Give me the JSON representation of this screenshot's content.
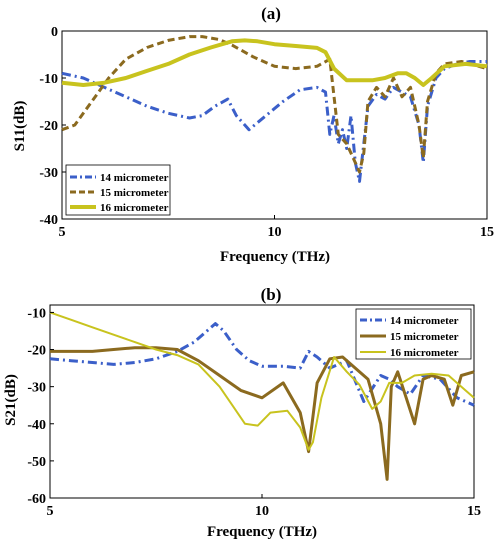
{
  "chart_data": [
    {
      "type": "line",
      "title": "(a)",
      "xlabel": "Frequency (THz)",
      "ylabel": "S11(dB)",
      "xlim": [
        5,
        15
      ],
      "ylim": [
        -40,
        0
      ],
      "xticks": [
        5,
        10,
        15
      ],
      "yticks": [
        -40,
        -30,
        -20,
        -10,
        0
      ],
      "tick_labels_y": [
        "-40",
        "-30",
        "-20",
        "-10",
        "0"
      ],
      "tick_labels_x": [
        "5",
        "10",
        "15"
      ],
      "legend_position": "bottom-left",
      "grid": false,
      "series": [
        {
          "name": "14 micrometer",
          "color": "#3b5fc9",
          "dash": "dashdot",
          "width": 3,
          "x": [
            5,
            5.5,
            6,
            6.5,
            7,
            7.5,
            8,
            8.3,
            8.6,
            8.9,
            9.1,
            9.4,
            9.8,
            10.2,
            10.6,
            11,
            11.2,
            11.3,
            11.4,
            11.5,
            11.6,
            11.7,
            11.8,
            11.9,
            12.0,
            12.1,
            12.2,
            12.4,
            12.6,
            12.8,
            13.0,
            13.2,
            13.4,
            13.5,
            13.6,
            13.8,
            14.0,
            14.3,
            14.6,
            15
          ],
          "y": [
            -9,
            -10,
            -12,
            -14,
            -16,
            -17.5,
            -18.5,
            -18,
            -16,
            -14.5,
            -18,
            -21,
            -18,
            -15,
            -12.5,
            -12,
            -13,
            -22,
            -18,
            -24,
            -21,
            -25,
            -18,
            -28,
            -32,
            -24,
            -16,
            -13.5,
            -14.5,
            -12,
            -13,
            -14,
            -20,
            -28,
            -16,
            -10,
            -8,
            -7,
            -6.5,
            -6.5
          ]
        },
        {
          "name": "15 micrometer",
          "color": "#8b6a1f",
          "dash": "dash",
          "width": 3,
          "x": [
            5,
            5.3,
            5.7,
            6.1,
            6.5,
            7.0,
            7.5,
            8.0,
            8.3,
            8.7,
            9.0,
            9.5,
            10.0,
            10.5,
            11.0,
            11.3,
            11.5,
            11.7,
            11.9,
            12.0,
            12.1,
            12.2,
            12.4,
            12.6,
            12.8,
            13.0,
            13.2,
            13.4,
            13.5,
            13.6,
            13.8,
            14.0,
            14.4,
            15
          ],
          "y": [
            -21,
            -20,
            -15,
            -10,
            -6,
            -3.5,
            -2,
            -1.2,
            -1.2,
            -1.8,
            -3,
            -5.5,
            -7.5,
            -8,
            -7.5,
            -6,
            -22,
            -24,
            -28,
            -30,
            -26,
            -15,
            -12,
            -14,
            -10,
            -14,
            -12,
            -20,
            -27,
            -15,
            -9,
            -7,
            -6.5,
            -8
          ]
        },
        {
          "name": "16 micrometer",
          "color": "#c8c31e",
          "dash": "solid",
          "width": 4,
          "x": [
            5,
            5.5,
            6,
            6.5,
            7,
            7.5,
            8,
            8.5,
            9,
            9.3,
            9.6,
            10,
            10.5,
            11,
            11.2,
            11.4,
            11.7,
            12.0,
            12.3,
            12.6,
            12.9,
            13.1,
            13.3,
            13.5,
            13.7,
            14.0,
            14.5,
            15
          ],
          "y": [
            -11,
            -11.5,
            -11,
            -10,
            -8.5,
            -7,
            -5,
            -3.5,
            -2.2,
            -2,
            -2.2,
            -2.8,
            -3.2,
            -3.6,
            -4.5,
            -8,
            -10.5,
            -10.5,
            -10.5,
            -10,
            -9,
            -9,
            -10,
            -11.5,
            -10,
            -7.5,
            -7,
            -7.5
          ]
        }
      ]
    },
    {
      "type": "line",
      "title": "(b)",
      "xlabel": "Frequency (THz)",
      "ylabel": "S21(dB)",
      "xlim": [
        5,
        15
      ],
      "ylim": [
        -60,
        -8
      ],
      "xticks": [
        5,
        10,
        15
      ],
      "yticks": [
        -60,
        -50,
        -40,
        -30,
        -20,
        -10
      ],
      "tick_labels_y": [
        "-60",
        "-50",
        "-40",
        "-30",
        "-20",
        "-10"
      ],
      "tick_labels_x": [
        "5",
        "10",
        "15"
      ],
      "legend_position": "top-right",
      "grid": false,
      "series": [
        {
          "name": "14 micrometer",
          "color": "#3b5fc9",
          "dash": "dashdot",
          "width": 3,
          "x": [
            5,
            5.5,
            6,
            6.5,
            7,
            7.5,
            8,
            8.4,
            8.7,
            8.9,
            9.1,
            9.4,
            9.7,
            10.0,
            10.5,
            10.9,
            11.1,
            11.3,
            11.6,
            12.0,
            12.4,
            12.8,
            13.0,
            13.2,
            13.5,
            13.8,
            14.2,
            14.6,
            15
          ],
          "y": [
            -22.5,
            -23,
            -23.5,
            -24,
            -23.5,
            -22.5,
            -20.5,
            -18,
            -15,
            -13,
            -15,
            -20,
            -23,
            -24.5,
            -24.5,
            -25,
            -20.5,
            -22,
            -25,
            -23,
            -34,
            -27,
            -28,
            -30,
            -32,
            -27,
            -28,
            -33,
            -35
          ]
        },
        {
          "name": "15 micrometer",
          "color": "#8b6a1f",
          "dash": "solid",
          "width": 3,
          "x": [
            5,
            5.5,
            6,
            6.5,
            7,
            7.5,
            8,
            8.5,
            9,
            9.5,
            10,
            10.5,
            10.9,
            11.1,
            11.3,
            11.6,
            11.9,
            12.2,
            12.5,
            12.8,
            12.95,
            13.05,
            13.2,
            13.4,
            13.6,
            13.8,
            14.0,
            14.3,
            14.5,
            14.7,
            15
          ],
          "y": [
            -20.5,
            -20.5,
            -20.5,
            -20,
            -19.5,
            -19.5,
            -20,
            -23,
            -27,
            -31,
            -33,
            -29,
            -37,
            -47.5,
            -29,
            -22.5,
            -22,
            -25,
            -28,
            -40,
            -55,
            -30,
            -26,
            -33,
            -40,
            -28,
            -27,
            -28,
            -35,
            -27,
            -26
          ]
        },
        {
          "name": "16 micrometer",
          "color": "#c8c31e",
          "dash": "solid",
          "width": 2,
          "x": [
            5,
            5.5,
            6,
            6.5,
            7,
            7.5,
            8,
            8.5,
            9,
            9.3,
            9.6,
            9.9,
            10.2,
            10.6,
            10.9,
            11.0,
            11.1,
            11.2,
            11.4,
            11.7,
            12.0,
            12.3,
            12.6,
            12.8,
            13.0,
            13.3,
            13.6,
            14.0,
            14.4,
            14.8,
            15
          ],
          "y": [
            -10,
            -12,
            -14,
            -16,
            -18,
            -20,
            -21.5,
            -24,
            -30,
            -35,
            -40,
            -40.5,
            -37,
            -36.5,
            -41,
            -44,
            -47,
            -45,
            -33,
            -22,
            -26,
            -29.5,
            -36,
            -34,
            -29,
            -29,
            -27,
            -26.5,
            -27,
            -31,
            -33
          ]
        }
      ]
    }
  ]
}
